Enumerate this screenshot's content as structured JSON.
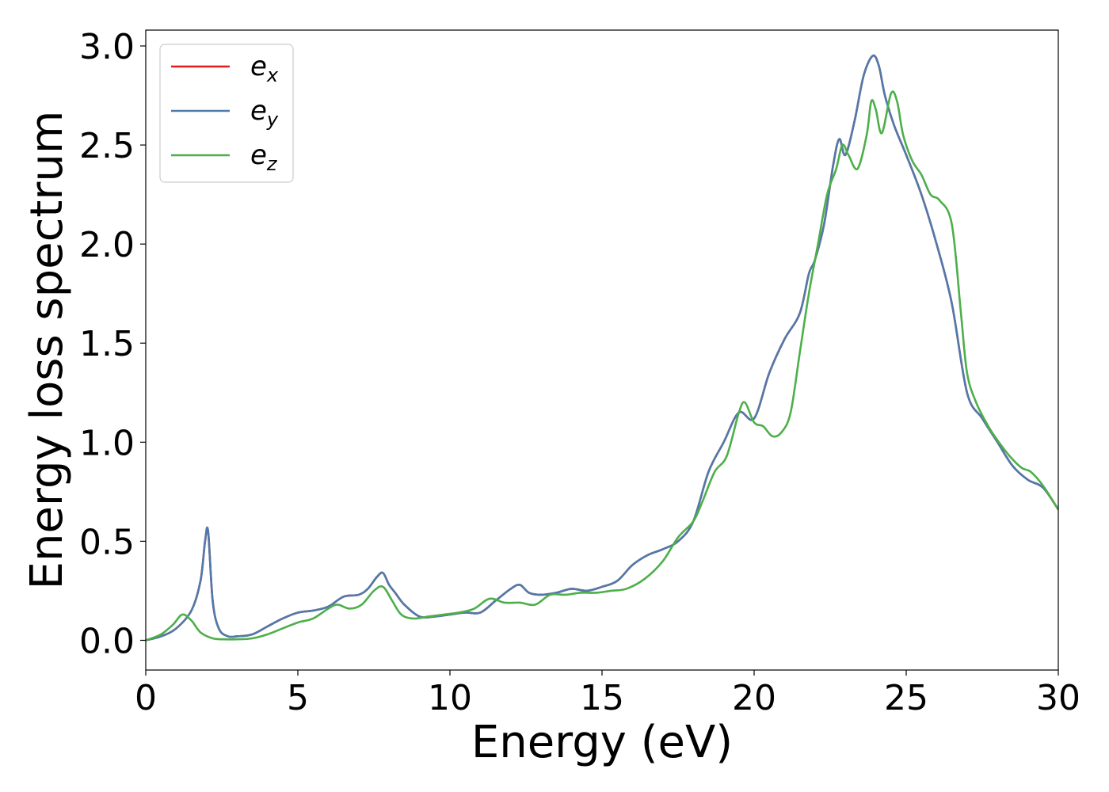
{
  "chart_data": {
    "type": "line",
    "title": "",
    "xlabel": "Energy (eV)",
    "ylabel": "Energy loss spectrum",
    "xlim": [
      0,
      30
    ],
    "ylim": [
      -0.15,
      3.08
    ],
    "xticks": [
      0,
      5,
      10,
      15,
      20,
      25,
      30
    ],
    "xtick_labels": [
      "0",
      "5",
      "10",
      "15",
      "20",
      "25",
      "30"
    ],
    "yticks": [
      0.0,
      0.5,
      1.0,
      1.5,
      2.0,
      2.5,
      3.0
    ],
    "ytick_labels": [
      "0.0",
      "0.5",
      "1.0",
      "1.5",
      "2.0",
      "2.5",
      "3.0"
    ],
    "grid": false,
    "legend_position": "top-left",
    "series": [
      {
        "name": "e",
        "subscript": "x",
        "color": "#e41a1c",
        "x": [
          0,
          0.5,
          1.0,
          1.5,
          1.8,
          1.95,
          2.05,
          2.2,
          2.4,
          2.7,
          3.0,
          3.5,
          4.0,
          4.5,
          5.0,
          5.5,
          6.0,
          6.5,
          7.0,
          7.3,
          7.6,
          7.8,
          8.0,
          8.2,
          8.5,
          9.0,
          9.5,
          10.0,
          10.5,
          11.0,
          11.5,
          12.0,
          12.3,
          12.6,
          13.0,
          13.5,
          14.0,
          14.5,
          15.0,
          15.5,
          16.0,
          16.5,
          17.0,
          17.5,
          18.0,
          18.5,
          19.0,
          19.5,
          20.0,
          20.5,
          21.0,
          21.5,
          21.8,
          22.0,
          22.3,
          22.6,
          22.8,
          23.0,
          23.3,
          23.6,
          23.9,
          24.1,
          24.3,
          24.6,
          25.0,
          25.5,
          26.0,
          26.5,
          27.0,
          27.5,
          28.0,
          28.5,
          29.0,
          29.5,
          30.0
        ],
        "y": [
          0.0,
          0.02,
          0.06,
          0.15,
          0.3,
          0.5,
          0.55,
          0.2,
          0.06,
          0.02,
          0.02,
          0.03,
          0.07,
          0.11,
          0.14,
          0.15,
          0.17,
          0.22,
          0.23,
          0.26,
          0.32,
          0.34,
          0.28,
          0.24,
          0.18,
          0.12,
          0.12,
          0.13,
          0.14,
          0.14,
          0.2,
          0.26,
          0.28,
          0.24,
          0.23,
          0.24,
          0.26,
          0.25,
          0.27,
          0.3,
          0.38,
          0.43,
          0.46,
          0.5,
          0.6,
          0.85,
          1.0,
          1.15,
          1.12,
          1.35,
          1.52,
          1.65,
          1.85,
          1.92,
          2.1,
          2.4,
          2.53,
          2.45,
          2.62,
          2.85,
          2.95,
          2.9,
          2.75,
          2.6,
          2.45,
          2.25,
          2.0,
          1.7,
          1.25,
          1.12,
          1.0,
          0.88,
          0.81,
          0.77,
          0.66
        ]
      },
      {
        "name": "e",
        "subscript": "y",
        "color": "#4f7aab",
        "x": [
          0,
          0.5,
          1.0,
          1.5,
          1.8,
          1.95,
          2.05,
          2.2,
          2.4,
          2.7,
          3.0,
          3.5,
          4.0,
          4.5,
          5.0,
          5.5,
          6.0,
          6.5,
          7.0,
          7.3,
          7.6,
          7.8,
          8.0,
          8.2,
          8.5,
          9.0,
          9.5,
          10.0,
          10.5,
          11.0,
          11.5,
          12.0,
          12.3,
          12.6,
          13.0,
          13.5,
          14.0,
          14.5,
          15.0,
          15.5,
          16.0,
          16.5,
          17.0,
          17.5,
          18.0,
          18.5,
          19.0,
          19.5,
          20.0,
          20.5,
          21.0,
          21.5,
          21.8,
          22.0,
          22.3,
          22.6,
          22.8,
          23.0,
          23.3,
          23.6,
          23.9,
          24.1,
          24.3,
          24.6,
          25.0,
          25.5,
          26.0,
          26.5,
          27.0,
          27.5,
          28.0,
          28.5,
          29.0,
          29.5,
          30.0
        ],
        "y": [
          0.0,
          0.02,
          0.06,
          0.15,
          0.3,
          0.5,
          0.55,
          0.2,
          0.06,
          0.02,
          0.02,
          0.03,
          0.07,
          0.11,
          0.14,
          0.15,
          0.17,
          0.22,
          0.23,
          0.26,
          0.32,
          0.34,
          0.28,
          0.24,
          0.18,
          0.12,
          0.12,
          0.13,
          0.14,
          0.14,
          0.2,
          0.26,
          0.28,
          0.24,
          0.23,
          0.24,
          0.26,
          0.25,
          0.27,
          0.3,
          0.38,
          0.43,
          0.46,
          0.5,
          0.6,
          0.85,
          1.0,
          1.15,
          1.12,
          1.35,
          1.52,
          1.65,
          1.85,
          1.92,
          2.1,
          2.4,
          2.53,
          2.45,
          2.62,
          2.85,
          2.95,
          2.9,
          2.75,
          2.6,
          2.45,
          2.25,
          2.0,
          1.7,
          1.25,
          1.12,
          1.0,
          0.88,
          0.81,
          0.77,
          0.66
        ]
      },
      {
        "name": "e",
        "subscript": "z",
        "color": "#4daf4a",
        "x": [
          0,
          0.5,
          0.9,
          1.2,
          1.5,
          1.8,
          2.2,
          2.6,
          3.0,
          3.5,
          4.0,
          4.5,
          5.0,
          5.5,
          6.0,
          6.3,
          6.7,
          7.1,
          7.5,
          7.8,
          8.1,
          8.4,
          8.8,
          9.3,
          9.8,
          10.3,
          10.8,
          11.3,
          11.8,
          12.3,
          12.8,
          13.3,
          13.8,
          14.3,
          14.8,
          15.3,
          15.8,
          16.4,
          17.0,
          17.5,
          18.0,
          18.3,
          18.7,
          19.1,
          19.5,
          19.7,
          20.0,
          20.3,
          20.6,
          20.9,
          21.2,
          21.5,
          21.8,
          22.1,
          22.4,
          22.7,
          22.9,
          23.1,
          23.4,
          23.7,
          23.85,
          24.0,
          24.2,
          24.5,
          24.7,
          24.9,
          25.2,
          25.5,
          25.8,
          26.1,
          26.5,
          26.8,
          27.0,
          27.3,
          27.7,
          28.0,
          28.4,
          28.8,
          29.1,
          29.5,
          30.0
        ],
        "y": [
          0.0,
          0.03,
          0.08,
          0.13,
          0.1,
          0.04,
          0.01,
          0.005,
          0.005,
          0.01,
          0.03,
          0.06,
          0.09,
          0.11,
          0.16,
          0.18,
          0.16,
          0.18,
          0.25,
          0.27,
          0.2,
          0.13,
          0.11,
          0.12,
          0.13,
          0.14,
          0.16,
          0.21,
          0.19,
          0.19,
          0.18,
          0.23,
          0.23,
          0.24,
          0.24,
          0.25,
          0.26,
          0.31,
          0.4,
          0.52,
          0.6,
          0.7,
          0.85,
          0.93,
          1.15,
          1.2,
          1.1,
          1.08,
          1.03,
          1.05,
          1.15,
          1.45,
          1.75,
          2.0,
          2.25,
          2.38,
          2.5,
          2.45,
          2.38,
          2.55,
          2.72,
          2.68,
          2.56,
          2.76,
          2.72,
          2.55,
          2.42,
          2.35,
          2.25,
          2.22,
          2.1,
          1.65,
          1.35,
          1.2,
          1.08,
          1.01,
          0.93,
          0.87,
          0.85,
          0.78,
          0.66
        ]
      }
    ]
  }
}
